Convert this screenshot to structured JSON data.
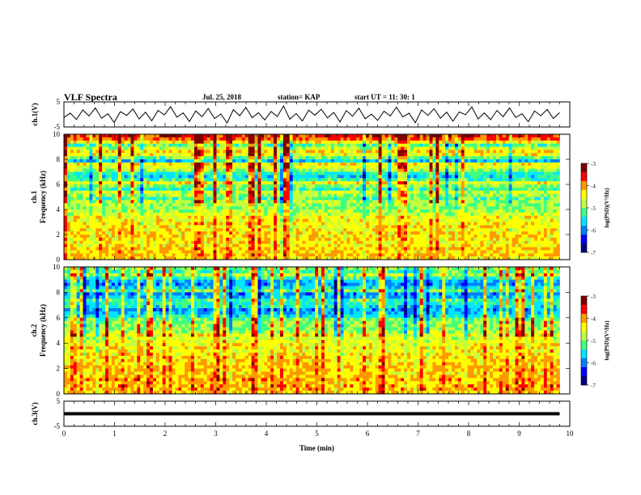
{
  "header": {
    "title": "VLF Spectra",
    "date": "Jul. 25, 2018",
    "station": "station= KAP",
    "start": "start  UT =   11: 30: 1"
  },
  "chart_data": [
    {
      "type": "line",
      "title": "VLF Spectra",
      "ylabel": "ch.1(V)",
      "ylim": [
        -5,
        5
      ],
      "yticks": [
        "5",
        "-5"
      ],
      "xlim": [
        0,
        10
      ],
      "x_end": 9.8,
      "series": [
        {
          "values": [
            -1.2,
            0.5,
            -2.0,
            1.8,
            -0.6,
            2.6,
            -1.5,
            0.3,
            -3.2,
            1.1,
            -0.4,
            2.2,
            -1.8,
            0.9,
            -2.5,
            1.6,
            -0.2,
            3.1,
            -1.1,
            0.6,
            -2.8,
            1.4,
            -0.9,
            2.4,
            -1.6,
            0.2,
            -3.4,
            1.9,
            -0.5,
            2.8,
            -1.3,
            0.7,
            -2.2,
            1.2,
            -0.8,
            3.4,
            -1.9,
            0.4,
            -2.6,
            1.7,
            -0.3,
            2.1,
            -1.4,
            0.8,
            -3.0,
            1.5,
            -0.7,
            2.5,
            -1.7,
            0.1,
            -2.4,
            1.3,
            -0.6,
            2.9,
            -1.0,
            0.5,
            -3.3,
            1.8,
            -0.4,
            2.3,
            -1.5,
            0.9,
            -2.7,
            1.0,
            -0.1,
            3.0,
            -1.8,
            0.6,
            -2.1,
            1.6,
            -0.9,
            2.6,
            -1.2,
            0.3,
            -2.9,
            1.4,
            -0.5,
            2.0,
            -1.6,
            0.7
          ]
        }
      ]
    },
    {
      "type": "heatmap",
      "ylabel": "ch.1\nFrequency (kHz)",
      "ylim": [
        0,
        10
      ],
      "yticks": [
        "10",
        "8",
        "6",
        "4",
        "2",
        "0"
      ],
      "xlim": [
        0,
        10
      ],
      "x_end": 9.8,
      "colorbar": {
        "label": "log(PSD)(V²/Hz)",
        "range": [
          -7,
          -3
        ],
        "ticks": [
          "-3",
          "-4",
          "-5",
          "-6",
          "-7"
        ]
      },
      "colormap": [
        "#00007f",
        "#0000ff",
        "#0080ff",
        "#00e5ff",
        "#40ff80",
        "#c0ff40",
        "#ffff00",
        "#ff9900",
        "#ff0000",
        "#800000"
      ],
      "profile": [
        -3.6,
        -3.8,
        -4.4,
        -5.2,
        -4.7,
        -4.3,
        -4.5,
        -5.1,
        -5.7,
        -4.4,
        -4.6,
        -4.9,
        -5.4,
        -5.6,
        -5.3,
        -4.5,
        -5.0,
        -5.3,
        -4.7,
        -4.9,
        -5.2,
        -4.8,
        -4.9,
        -5.0,
        -4.9,
        -4.7,
        -4.4,
        -4.5,
        -4.4,
        -4.4,
        -4.4,
        -4.3,
        -4.3,
        -4.3,
        -4.4,
        -4.4,
        -4.2,
        -4.3,
        -4.2,
        -4.3
      ]
    },
    {
      "type": "heatmap",
      "ylabel": "ch.2\nFrequency (kHz)",
      "ylim": [
        0,
        10
      ],
      "yticks": [
        "10",
        "8",
        "6",
        "4",
        "2",
        "0"
      ],
      "xlim": [
        0,
        10
      ],
      "x_end": 9.8,
      "colorbar": {
        "label": "log(PSD)(V²/Hz)",
        "range": [
          -7,
          -3
        ],
        "ticks": [
          "-3",
          "-4",
          "-5",
          "-6",
          "-7"
        ]
      },
      "colormap": [
        "#00007f",
        "#0000ff",
        "#0080ff",
        "#00e5ff",
        "#40ff80",
        "#c0ff40",
        "#ffff00",
        "#ff9900",
        "#ff0000",
        "#800000"
      ],
      "profile": [
        -5.0,
        -5.2,
        -4.8,
        -5.3,
        -5.8,
        -5.9,
        -5.6,
        -5.2,
        -5.9,
        -5.8,
        -5.3,
        -5.4,
        -5.6,
        -5.9,
        -5.8,
        -5.5,
        -5.1,
        -5.0,
        -4.9,
        -5.0,
        -4.8,
        -4.5,
        -4.7,
        -4.6,
        -4.5,
        -4.4,
        -4.5,
        -4.4,
        -4.3,
        -4.3,
        -4.3,
        -4.2,
        -4.2,
        -4.3,
        -4.2,
        -4.1,
        -4.2,
        -4.1,
        -4.1,
        -4.2
      ]
    },
    {
      "type": "line",
      "ylabel": "ch.3(V)",
      "ylim": [
        -5,
        5
      ],
      "yticks": [
        "5",
        "-5"
      ],
      "xlim": [
        0,
        10
      ],
      "x_end": 9.8,
      "xlabel": "Time (min)",
      "xticks": [
        "0",
        "1",
        "2",
        "3",
        "4",
        "5",
        "6",
        "7",
        "8",
        "9",
        "10"
      ],
      "series": [
        {
          "values": [
            0.0,
            0.0
          ]
        }
      ]
    }
  ]
}
